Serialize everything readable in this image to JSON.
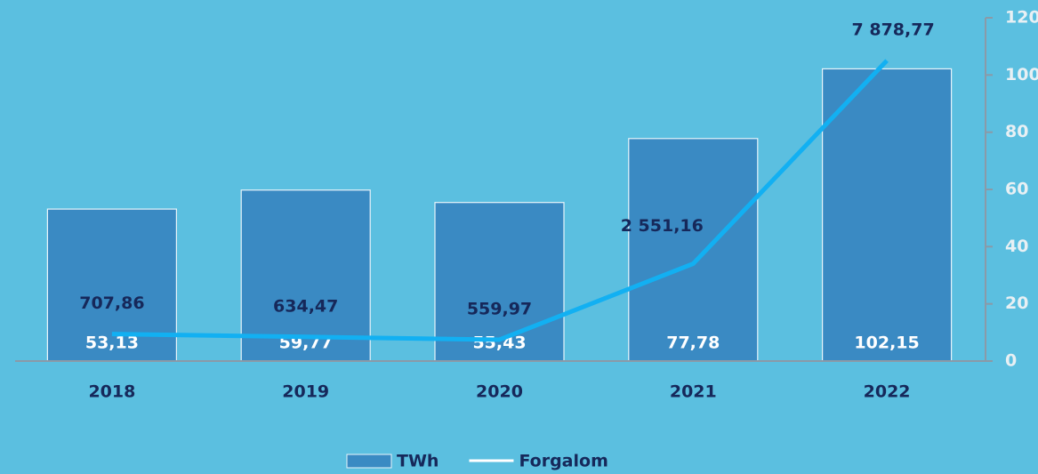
{
  "chart_data": {
    "type": "bar",
    "categories": [
      "2018",
      "2019",
      "2020",
      "2021",
      "2022"
    ],
    "series": [
      {
        "name": "TWh",
        "type": "bar",
        "color": "#3a8ac3",
        "values": [
          53.13,
          59.77,
          55.43,
          77.78,
          102.15
        ],
        "value_labels": [
          "53,13",
          "59,77",
          "55,43",
          "77,78",
          "102,15"
        ]
      },
      {
        "name": "Forgalom",
        "type": "line",
        "axis": "y2",
        "color": "#12b0f2",
        "values": [
          707.86,
          634.47,
          559.97,
          2551.16,
          7878.77
        ],
        "value_labels": [
          "707,86",
          "634,47",
          "559,97",
          "2 551,16",
          "7 878,77"
        ]
      }
    ],
    "ylim": [
      0,
      120
    ],
    "yticks": [
      0,
      20,
      40,
      60,
      80,
      100,
      120
    ],
    "y2lim": [
      0,
      9000
    ],
    "legend": "bottom"
  }
}
